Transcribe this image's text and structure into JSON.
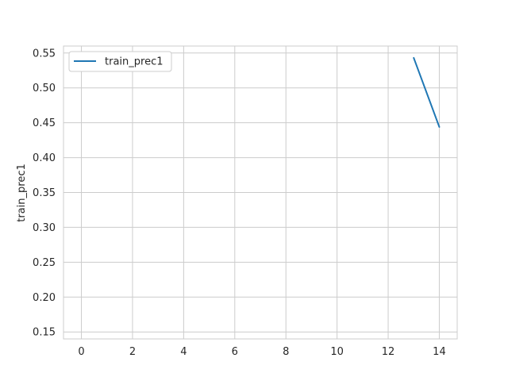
{
  "chart_data": {
    "type": "line",
    "title": "",
    "xlabel": "",
    "ylabel": "train_prec1",
    "xlim": [
      -0.7,
      14.7
    ],
    "ylim": [
      0.14,
      0.56
    ],
    "xticks": [
      0,
      2,
      4,
      6,
      8,
      10,
      12,
      14
    ],
    "yticks": [
      0.15,
      0.2,
      0.25,
      0.3,
      0.35,
      0.4,
      0.45,
      0.5,
      0.55
    ],
    "grid": true,
    "legend_position": "top-left",
    "series": [
      {
        "name": "train_prec1",
        "color": "#1f77b4",
        "x": [
          13,
          14
        ],
        "y": [
          0.543,
          0.444
        ]
      }
    ]
  }
}
